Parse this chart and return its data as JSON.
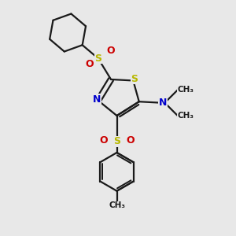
{
  "bg_color": "#e8e8e8",
  "bond_color": "#1a1a1a",
  "S_color": "#b8b800",
  "N_color": "#0000cc",
  "O_color": "#cc0000",
  "line_width": 1.6,
  "figsize": [
    3.0,
    3.0
  ],
  "dpi": 100,
  "xlim": [
    0,
    10
  ],
  "ylim": [
    0,
    10
  ]
}
